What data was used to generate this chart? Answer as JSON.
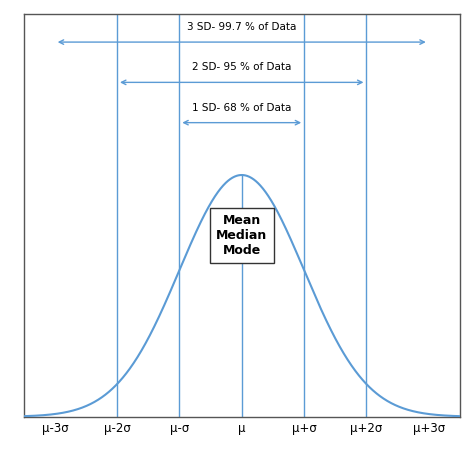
{
  "figure_width": 4.74,
  "figure_height": 4.63,
  "dpi": 100,
  "curve_color": "#5b9bd5",
  "line_color": "#5b9bd5",
  "arrow_color": "#5b9bd5",
  "background_color": "#ffffff",
  "sigma_positions": [
    -3,
    -2,
    -1,
    0,
    1,
    2,
    3
  ],
  "tick_labels": [
    "μ-3σ",
    "μ-2σ",
    "μ-σ",
    "μ",
    "μ+σ",
    "μ+2σ",
    "μ+3σ"
  ],
  "sd1_label": "1 SD- 68 % of Data",
  "sd2_label": "2 SD- 95 % of Data",
  "sd3_label": "3 SD- 99.7 % of Data",
  "center_box_label": "Mean\nMedian\nMode"
}
